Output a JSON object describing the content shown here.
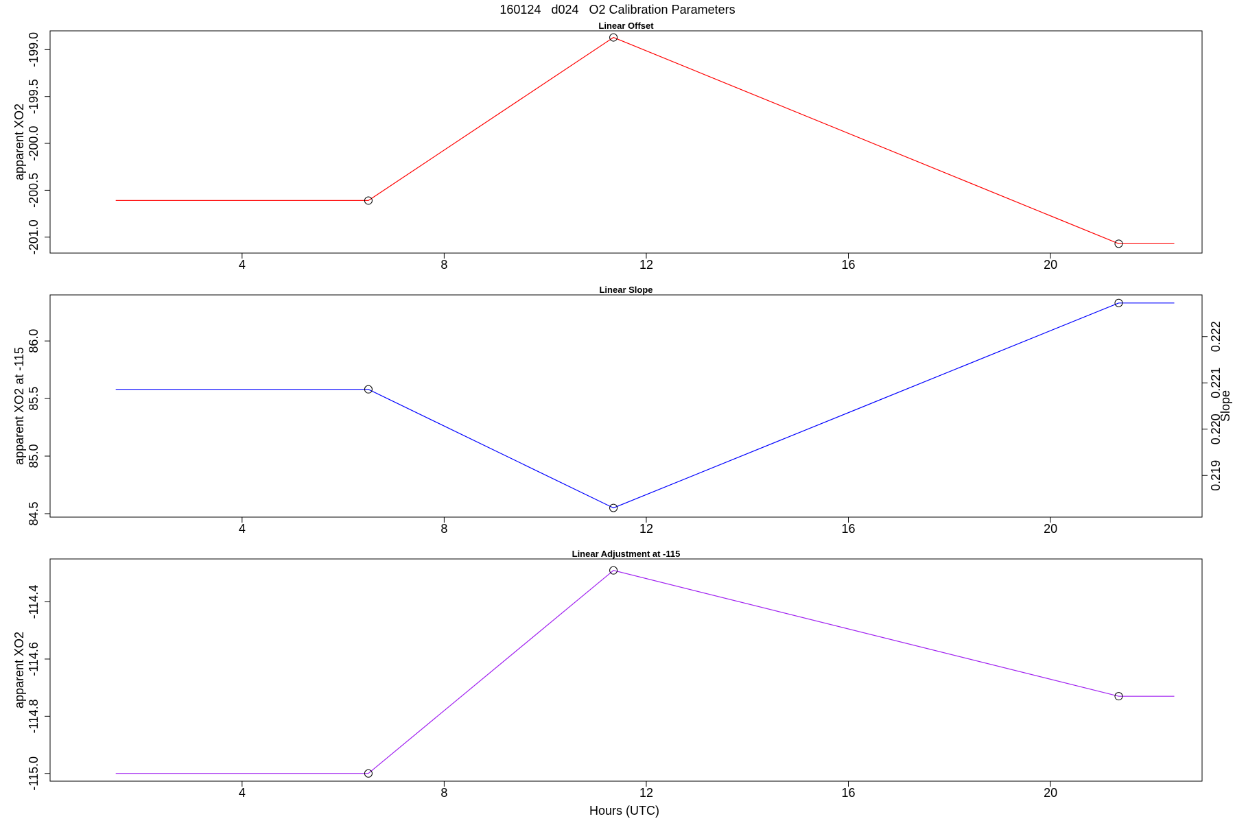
{
  "main_title": "160124   d024   O2 Calibration Parameters",
  "xlabel": "Hours (UTC)",
  "chart_data": [
    {
      "type": "line",
      "title": "Linear Offset",
      "xlabel": "Hours (UTC)",
      "ylabel": "apparent XO2",
      "color": "#ff0000",
      "xlim": [
        0.2,
        23.0
      ],
      "ylim": [
        -201.17,
        -198.8
      ],
      "x_ticks": [
        4,
        8,
        12,
        16,
        20
      ],
      "y_ticks": [
        -201.0,
        -200.5,
        -200.0,
        -199.5,
        -199.0
      ],
      "y_tick_labels": [
        "-201.0",
        "-200.5",
        "-200.0",
        "-199.5",
        "-199.0"
      ],
      "series": [
        {
          "x": [
            1.5,
            6.5,
            11.35,
            21.35,
            22.45
          ],
          "y": [
            -200.61,
            -200.61,
            -198.87,
            -201.07,
            -201.07
          ],
          "markers": [
            1,
            2,
            3
          ]
        }
      ]
    },
    {
      "type": "line",
      "title": "Linear Slope",
      "xlabel": "Hours (UTC)",
      "ylabel": "apparent XO2 at -115",
      "ylabel_right": "Slope",
      "color": "#0000ff",
      "xlim": [
        0.2,
        23.0
      ],
      "ylim": [
        84.47,
        86.4
      ],
      "x_ticks": [
        4,
        8,
        12,
        16,
        20
      ],
      "y_ticks": [
        84.5,
        85.0,
        85.5,
        86.0
      ],
      "y_tick_labels": [
        "84.5",
        "85.0",
        "85.5",
        "86.0"
      ],
      "y2_ticks": [
        0.219,
        0.22,
        0.221,
        0.222
      ],
      "y2_tick_labels": [
        "0.219",
        "0.220",
        "0.221",
        "0.222"
      ],
      "y2_lim": [
        0.2181,
        0.2229
      ],
      "series": [
        {
          "x": [
            1.5,
            6.5,
            11.35,
            21.35,
            22.45
          ],
          "y": [
            85.58,
            85.58,
            84.55,
            86.33,
            86.33
          ],
          "markers": [
            1,
            2,
            3
          ]
        }
      ]
    },
    {
      "type": "line",
      "title": "Linear Adjustment at -115",
      "xlabel": "Hours (UTC)",
      "ylabel": "apparent XO2",
      "color": "#a020f0",
      "xlim": [
        0.2,
        23.0
      ],
      "ylim": [
        -115.027,
        -114.25
      ],
      "x_ticks": [
        4,
        8,
        12,
        16,
        20
      ],
      "y_ticks": [
        -115.0,
        -114.8,
        -114.6,
        -114.4
      ],
      "y_tick_labels": [
        "-115.0",
        "-114.8",
        "-114.6",
        "-114.4"
      ],
      "series": [
        {
          "x": [
            1.5,
            6.5,
            11.35,
            21.35,
            22.45
          ],
          "y": [
            -115.0,
            -115.0,
            -114.29,
            -114.73,
            -114.73
          ],
          "markers": [
            1,
            2,
            3
          ]
        }
      ]
    }
  ]
}
